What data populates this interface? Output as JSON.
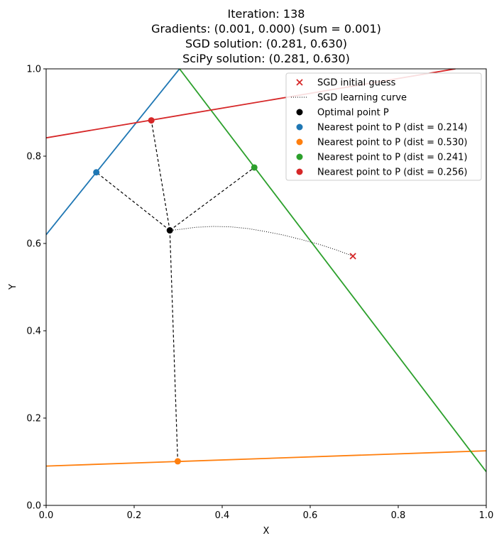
{
  "chart_data": {
    "type": "line",
    "title_lines": [
      "Iteration: 138",
      "Gradients: (0.001, 0.000) (sum = 0.001)",
      "SGD solution: (0.281, 0.630)",
      "SciPy solution: (0.281, 0.630)"
    ],
    "xlabel": "X",
    "ylabel": "Y",
    "xlim": [
      0.0,
      1.0
    ],
    "ylim": [
      0.0,
      1.0
    ],
    "xticks": [
      "0.0",
      "0.2",
      "0.4",
      "0.6",
      "0.8",
      "1.0"
    ],
    "yticks": [
      "0.0",
      "0.2",
      "0.4",
      "0.6",
      "0.8",
      "1.0"
    ],
    "grid": false,
    "legend_position": "top-right",
    "colors": {
      "blue": "#1f77b4",
      "orange": "#ff7f0e",
      "green": "#2ca02c",
      "red": "#d62728",
      "black": "#000000"
    },
    "lines": [
      {
        "color": "blue",
        "points": [
          [
            0.0,
            0.62
          ],
          [
            0.303,
            1.0
          ]
        ]
      },
      {
        "color": "orange",
        "points": [
          [
            0.0,
            0.09
          ],
          [
            1.0,
            0.125
          ]
        ]
      },
      {
        "color": "green",
        "points": [
          [
            0.303,
            1.0
          ],
          [
            1.0,
            0.077
          ]
        ]
      },
      {
        "color": "red",
        "points": [
          [
            0.0,
            0.842
          ],
          [
            0.93,
            1.0
          ]
        ]
      }
    ],
    "initial_guess": {
      "x": 0.697,
      "y": 0.571
    },
    "learning_curve": [
      [
        0.697,
        0.571
      ],
      [
        0.66,
        0.585
      ],
      [
        0.62,
        0.598
      ],
      [
        0.58,
        0.609
      ],
      [
        0.54,
        0.619
      ],
      [
        0.5,
        0.627
      ],
      [
        0.46,
        0.634
      ],
      [
        0.42,
        0.638
      ],
      [
        0.38,
        0.639
      ],
      [
        0.34,
        0.637
      ],
      [
        0.31,
        0.633
      ],
      [
        0.281,
        0.63
      ]
    ],
    "optimal_point": {
      "x": 0.281,
      "y": 0.63
    },
    "nearest_points": [
      {
        "color": "blue",
        "x": 0.114,
        "y": 0.763
      },
      {
        "color": "orange",
        "x": 0.299,
        "y": 0.101
      },
      {
        "color": "green",
        "x": 0.473,
        "y": 0.774
      },
      {
        "color": "red",
        "x": 0.239,
        "y": 0.882
      }
    ],
    "legend": [
      {
        "marker": "x",
        "color": "red",
        "label": "SGD initial guess"
      },
      {
        "marker": "dotted-line",
        "color": "black",
        "label": "SGD learning curve"
      },
      {
        "marker": "dot",
        "color": "black",
        "label": "Optimal point P"
      },
      {
        "marker": "dot",
        "color": "blue",
        "label": "Nearest point to P (dist = 0.214)"
      },
      {
        "marker": "dot",
        "color": "orange",
        "label": "Nearest point to P (dist = 0.530)"
      },
      {
        "marker": "dot",
        "color": "green",
        "label": "Nearest point to P (dist = 0.241)"
      },
      {
        "marker": "dot",
        "color": "red",
        "label": "Nearest point to P (dist = 0.256)"
      }
    ]
  }
}
